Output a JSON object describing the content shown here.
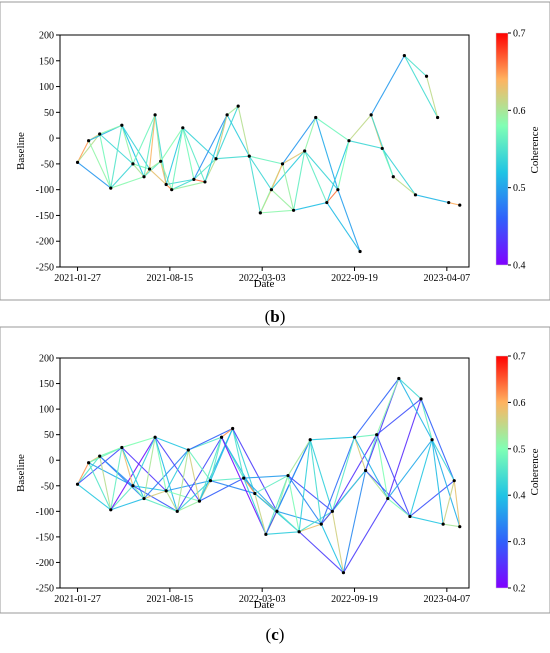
{
  "chart_data": [
    {
      "type": "network-line",
      "panel_label": "b",
      "xlabel": "Date",
      "ylabel": "Baseline",
      "colorbar_label": "Coherence",
      "ylim": [
        -250,
        200
      ],
      "xlim": [
        "2020-12-20",
        "2023-05-25"
      ],
      "x_ticks": [
        "2021-01-27",
        "2021-08-15",
        "2022-03-03",
        "2022-09-19",
        "2023-04-07"
      ],
      "y_ticks": [
        200,
        150,
        100,
        50,
        0,
        -50,
        -100,
        -150,
        -200,
        -250
      ],
      "colorbar_range": [
        0.4,
        0.7
      ],
      "colorbar_ticks": [
        "0.7",
        "0.6",
        "0.5",
        "0.4"
      ],
      "colormap": "rainbow",
      "grid": false,
      "acquisitions": [
        {
          "date": "2021-01-27",
          "baseline": -47
        },
        {
          "date": "2021-02-20",
          "baseline": -5
        },
        {
          "date": "2021-03-16",
          "baseline": 8
        },
        {
          "date": "2021-04-09",
          "baseline": -97
        },
        {
          "date": "2021-05-03",
          "baseline": 25
        },
        {
          "date": "2021-05-27",
          "baseline": -50
        },
        {
          "date": "2021-06-20",
          "baseline": -75
        },
        {
          "date": "2021-07-02",
          "baseline": -60
        },
        {
          "date": "2021-07-14",
          "baseline": 45
        },
        {
          "date": "2021-07-26",
          "baseline": -45
        },
        {
          "date": "2021-08-07",
          "baseline": -90
        },
        {
          "date": "2021-08-19",
          "baseline": -100
        },
        {
          "date": "2021-09-12",
          "baseline": 20
        },
        {
          "date": "2021-10-06",
          "baseline": -80
        },
        {
          "date": "2021-10-30",
          "baseline": -85
        },
        {
          "date": "2021-11-23",
          "baseline": -40
        },
        {
          "date": "2021-12-17",
          "baseline": 45
        },
        {
          "date": "2022-01-10",
          "baseline": 62
        },
        {
          "date": "2022-02-03",
          "baseline": -35
        },
        {
          "date": "2022-02-27",
          "baseline": -145
        },
        {
          "date": "2022-03-23",
          "baseline": -100
        },
        {
          "date": "2022-04-16",
          "baseline": -50
        },
        {
          "date": "2022-05-10",
          "baseline": -140
        },
        {
          "date": "2022-06-03",
          "baseline": -25
        },
        {
          "date": "2022-06-27",
          "baseline": 40
        },
        {
          "date": "2022-07-21",
          "baseline": -125
        },
        {
          "date": "2022-08-14",
          "baseline": -100
        },
        {
          "date": "2022-09-07",
          "baseline": -5
        },
        {
          "date": "2022-10-01",
          "baseline": -220
        },
        {
          "date": "2022-10-25",
          "baseline": 45
        },
        {
          "date": "2022-11-18",
          "baseline": -20
        },
        {
          "date": "2022-12-12",
          "baseline": -75
        },
        {
          "date": "2023-01-05",
          "baseline": 160
        },
        {
          "date": "2023-01-29",
          "baseline": -110
        },
        {
          "date": "2023-02-22",
          "baseline": 120
        },
        {
          "date": "2023-03-18",
          "baseline": 40
        },
        {
          "date": "2023-04-11",
          "baseline": -125
        },
        {
          "date": "2023-05-05",
          "baseline": -130
        }
      ]
    },
    {
      "type": "network-line",
      "panel_label": "c",
      "xlabel": "Date",
      "ylabel": "Baseline",
      "colorbar_label": "Coherence",
      "ylim": [
        -250,
        200
      ],
      "xlim": [
        "2020-12-20",
        "2023-05-25"
      ],
      "x_ticks": [
        "2021-01-27",
        "2021-08-15",
        "2022-03-03",
        "2022-09-19",
        "2023-04-07"
      ],
      "y_ticks": [
        200,
        150,
        100,
        50,
        0,
        -50,
        -100,
        -150,
        -200,
        -250
      ],
      "colorbar_range": [
        0.2,
        0.7
      ],
      "colorbar_ticks": [
        "0.7",
        "0.6",
        "0.5",
        "0.4",
        "0.3",
        "0.2"
      ],
      "colormap": "rainbow",
      "grid": false,
      "acquisitions": [
        {
          "date": "2021-01-27",
          "baseline": -47
        },
        {
          "date": "2021-02-20",
          "baseline": -5
        },
        {
          "date": "2021-03-16",
          "baseline": 8
        },
        {
          "date": "2021-04-09",
          "baseline": -97
        },
        {
          "date": "2021-05-03",
          "baseline": 25
        },
        {
          "date": "2021-05-27",
          "baseline": -50
        },
        {
          "date": "2021-06-20",
          "baseline": -75
        },
        {
          "date": "2021-07-14",
          "baseline": 45
        },
        {
          "date": "2021-08-07",
          "baseline": -60
        },
        {
          "date": "2021-08-31",
          "baseline": -100
        },
        {
          "date": "2021-09-24",
          "baseline": 20
        },
        {
          "date": "2021-10-18",
          "baseline": -80
        },
        {
          "date": "2021-11-11",
          "baseline": -40
        },
        {
          "date": "2021-12-05",
          "baseline": 45
        },
        {
          "date": "2021-12-29",
          "baseline": 62
        },
        {
          "date": "2022-01-22",
          "baseline": -35
        },
        {
          "date": "2022-02-15",
          "baseline": -65
        },
        {
          "date": "2022-03-11",
          "baseline": -145
        },
        {
          "date": "2022-04-04",
          "baseline": -100
        },
        {
          "date": "2022-04-28",
          "baseline": -30
        },
        {
          "date": "2022-05-22",
          "baseline": -140
        },
        {
          "date": "2022-06-15",
          "baseline": 40
        },
        {
          "date": "2022-07-09",
          "baseline": -125
        },
        {
          "date": "2022-08-02",
          "baseline": -100
        },
        {
          "date": "2022-08-26",
          "baseline": -220
        },
        {
          "date": "2022-09-19",
          "baseline": 45
        },
        {
          "date": "2022-10-13",
          "baseline": -20
        },
        {
          "date": "2022-11-06",
          "baseline": 50
        },
        {
          "date": "2022-11-30",
          "baseline": -75
        },
        {
          "date": "2022-12-24",
          "baseline": 160
        },
        {
          "date": "2023-01-17",
          "baseline": -110
        },
        {
          "date": "2023-02-10",
          "baseline": 120
        },
        {
          "date": "2023-03-06",
          "baseline": 40
        },
        {
          "date": "2023-03-30",
          "baseline": -125
        },
        {
          "date": "2023-04-23",
          "baseline": -40
        },
        {
          "date": "2023-05-05",
          "baseline": -130
        }
      ]
    }
  ]
}
